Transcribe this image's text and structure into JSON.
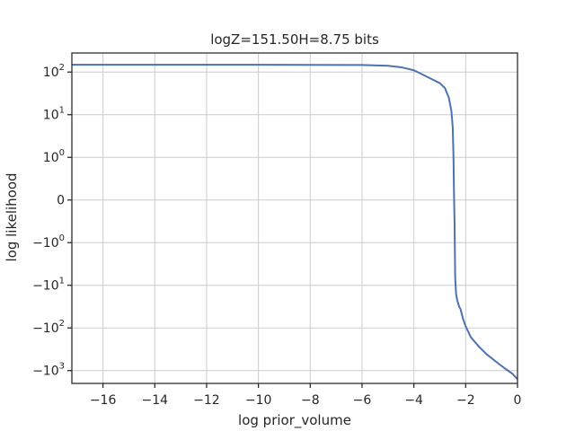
{
  "chart_data": {
    "type": "line",
    "title": "logZ=151.50H=8.75 bits",
    "xlabel": "log prior_volume",
    "ylabel": "log likelihood",
    "xlim": [
      -17.2,
      0
    ],
    "yscale": "symlog",
    "ylim": [
      -2000,
      280
    ],
    "grid": true,
    "line_color": "#4c72b0",
    "x_ticks": [
      {
        "value": -16,
        "label": "−16"
      },
      {
        "value": -14,
        "label": "−14"
      },
      {
        "value": -12,
        "label": "−12"
      },
      {
        "value": -10,
        "label": "−10"
      },
      {
        "value": -8,
        "label": "−8"
      },
      {
        "value": -6,
        "label": "−6"
      },
      {
        "value": -4,
        "label": "−4"
      },
      {
        "value": -2,
        "label": "−2"
      },
      {
        "value": 0,
        "label": "0"
      }
    ],
    "y_ticks": [
      {
        "value": 100,
        "base": "10",
        "exp": "2"
      },
      {
        "value": 10,
        "base": "10",
        "exp": "1"
      },
      {
        "value": 1,
        "base": "10",
        "exp": "0"
      },
      {
        "value": 0,
        "base": "0",
        "exp": ""
      },
      {
        "value": -1,
        "base": "−10",
        "exp": "0"
      },
      {
        "value": -10,
        "base": "−10",
        "exp": "1"
      },
      {
        "value": -100,
        "base": "−10",
        "exp": "2"
      },
      {
        "value": -1000,
        "base": "−10",
        "exp": "3"
      }
    ],
    "series": [
      {
        "x": [
          -17.2,
          -10,
          -6,
          -5,
          -4.5,
          -4,
          -3.5,
          -3,
          -2.8,
          -2.65,
          -2.55,
          -2.5,
          -2.47,
          -2.45,
          -2.43,
          -2.42,
          -2.415,
          -2.41,
          -2.405,
          -2.4,
          -2.39,
          -2.37,
          -2.33,
          -2.25,
          -2.2,
          -2.1,
          -2.0,
          -1.8,
          -1.5,
          -1.2,
          -0.8,
          -0.5,
          -0.2,
          0
        ],
        "y": [
          148,
          148,
          146,
          140,
          130,
          110,
          78,
          55,
          42,
          25,
          12,
          5,
          1,
          0.1,
          -0.5,
          -1.2,
          -2,
          -4,
          -6,
          -8,
          -10,
          -16,
          -22,
          -32,
          -36,
          -62,
          -92,
          -165,
          -270,
          -410,
          -640,
          -880,
          -1180,
          -1600
        ]
      }
    ]
  }
}
